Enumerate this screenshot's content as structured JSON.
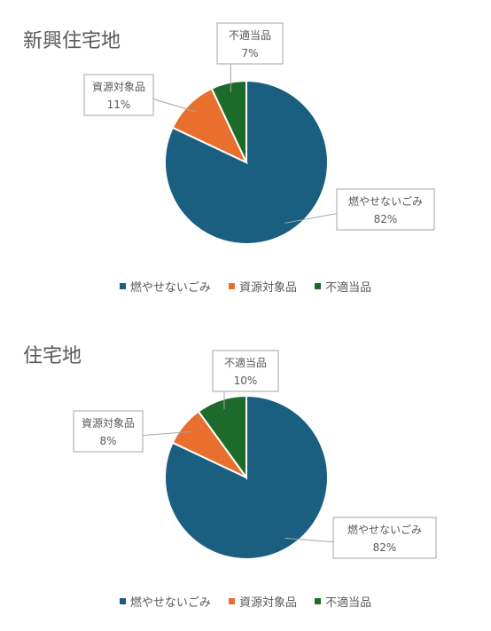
{
  "colors": {
    "燃やせないごみ": "#1a5e80",
    "資源対象品": "#e86f2d",
    "不適当品": "#1d6b2a"
  },
  "chart_data": [
    {
      "type": "pie",
      "title": "新興住宅地",
      "legend_position": "bottom",
      "categories": [
        "燃やせないごみ",
        "資源対象品",
        "不適当品"
      ],
      "values": [
        82,
        11,
        7
      ],
      "data_labels": [
        "82%",
        "11%",
        "7%"
      ]
    },
    {
      "type": "pie",
      "title": "住宅地",
      "legend_position": "bottom",
      "categories": [
        "燃やせないごみ",
        "資源対象品",
        "不適当品"
      ],
      "values": [
        82,
        8,
        10
      ],
      "data_labels": [
        "82%",
        "8%",
        "10%"
      ]
    }
  ]
}
